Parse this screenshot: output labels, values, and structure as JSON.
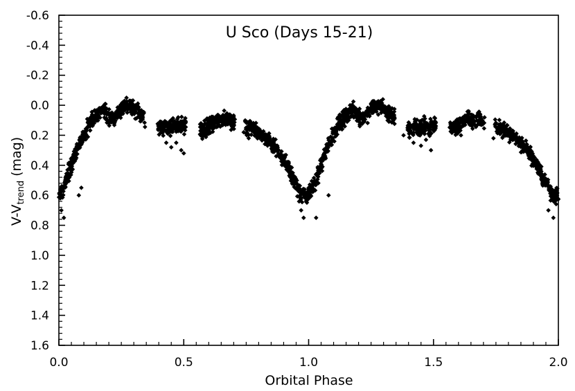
{
  "chart_data": {
    "type": "scatter",
    "title": "U Sco (Days 15-21)",
    "xlabel": "Orbital Phase",
    "ylabel": {
      "prefix": "V-V",
      "subscript": "trend",
      "suffix": " (mag)"
    },
    "xlim": [
      0.0,
      2.0
    ],
    "ylim": [
      -0.6,
      1.6
    ],
    "y_inverted": true,
    "grid": false,
    "legend": "none",
    "marker": "diamond",
    "marker_color": "#000000",
    "x_ticks": [
      "0.0",
      "0.5",
      "1.0",
      "1.5",
      "2.0"
    ],
    "y_ticks": [
      "-0.6",
      "-0.4",
      "-0.2",
      "0.0",
      "0.2",
      "0.4",
      "0.6",
      "0.8",
      "1.0",
      "1.2",
      "1.4",
      "1.6"
    ],
    "curve": [
      [
        0.0,
        0.6
      ],
      [
        0.02,
        0.55
      ],
      [
        0.04,
        0.45
      ],
      [
        0.06,
        0.34
      ],
      [
        0.08,
        0.26
      ],
      [
        0.1,
        0.2
      ],
      [
        0.12,
        0.13
      ],
      [
        0.14,
        0.09
      ],
      [
        0.16,
        0.05
      ],
      [
        0.18,
        0.03
      ],
      [
        0.2,
        0.08
      ],
      [
        0.22,
        0.1
      ],
      [
        0.24,
        0.05
      ],
      [
        0.26,
        0.01
      ],
      [
        0.28,
        0.0
      ],
      [
        0.3,
        0.02
      ],
      [
        0.32,
        0.05
      ],
      [
        0.34,
        0.08
      ],
      [
        0.4,
        0.15
      ],
      [
        0.44,
        0.15
      ],
      [
        0.48,
        0.14
      ],
      [
        0.5,
        0.13
      ],
      [
        0.58,
        0.16
      ],
      [
        0.62,
        0.11
      ],
      [
        0.65,
        0.1
      ],
      [
        0.68,
        0.09
      ],
      [
        0.7,
        0.12
      ],
      [
        0.75,
        0.14
      ],
      [
        0.8,
        0.18
      ],
      [
        0.85,
        0.25
      ],
      [
        0.88,
        0.31
      ],
      [
        0.92,
        0.42
      ],
      [
        0.95,
        0.53
      ],
      [
        0.97,
        0.6
      ],
      [
        1.0,
        0.59
      ],
      [
        1.02,
        0.54
      ],
      [
        1.04,
        0.45
      ],
      [
        1.06,
        0.34
      ],
      [
        1.08,
        0.26
      ],
      [
        1.1,
        0.2
      ],
      [
        1.12,
        0.13
      ],
      [
        1.14,
        0.09
      ],
      [
        1.16,
        0.05
      ],
      [
        1.18,
        0.03
      ],
      [
        1.2,
        0.08
      ],
      [
        1.22,
        0.1
      ],
      [
        1.24,
        0.05
      ],
      [
        1.26,
        0.01
      ],
      [
        1.28,
        0.0
      ],
      [
        1.3,
        0.02
      ],
      [
        1.32,
        0.05
      ],
      [
        1.34,
        0.08
      ],
      [
        1.4,
        0.15
      ],
      [
        1.44,
        0.15
      ],
      [
        1.48,
        0.14
      ],
      [
        1.5,
        0.13
      ],
      [
        1.58,
        0.16
      ],
      [
        1.62,
        0.11
      ],
      [
        1.65,
        0.1
      ],
      [
        1.68,
        0.09
      ],
      [
        1.7,
        0.12
      ],
      [
        1.75,
        0.14
      ],
      [
        1.8,
        0.18
      ],
      [
        1.85,
        0.25
      ],
      [
        1.88,
        0.31
      ],
      [
        1.92,
        0.42
      ],
      [
        1.95,
        0.53
      ],
      [
        1.98,
        0.6
      ],
      [
        2.0,
        0.6
      ]
    ],
    "outliers": [
      [
        0.02,
        0.75
      ],
      [
        0.01,
        0.7
      ],
      [
        0.08,
        0.6
      ],
      [
        0.09,
        0.55
      ],
      [
        0.43,
        0.25
      ],
      [
        0.45,
        0.28
      ],
      [
        0.47,
        0.25
      ],
      [
        0.49,
        0.3
      ],
      [
        0.5,
        0.32
      ],
      [
        0.57,
        0.2
      ],
      [
        0.6,
        0.19
      ],
      [
        0.76,
        0.22
      ],
      [
        0.74,
        0.18
      ],
      [
        0.98,
        0.75
      ],
      [
        0.97,
        0.7
      ],
      [
        1.03,
        0.75
      ],
      [
        1.08,
        0.6
      ],
      [
        1.38,
        0.2
      ],
      [
        1.42,
        0.25
      ],
      [
        1.45,
        0.27
      ],
      [
        1.47,
        0.23
      ],
      [
        1.49,
        0.3
      ],
      [
        1.61,
        0.2
      ],
      [
        1.74,
        0.22
      ],
      [
        1.98,
        0.75
      ],
      [
        1.96,
        0.7
      ]
    ]
  }
}
